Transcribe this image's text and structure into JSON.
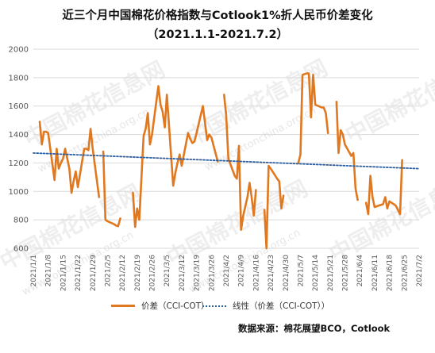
{
  "title": {
    "line1": "近三个月中国棉花价格指数与Cotlook1%折人民币价差变化",
    "line2": "（2021.1.1-2021.7.2）"
  },
  "watermark": {
    "text": "中国棉花信息网",
    "url": "www.cottonchina.org.cn"
  },
  "legend": {
    "series_label": "价差（CCI-COT）",
    "trend_label": "线性（价差（CCI-COT））"
  },
  "source": "数据来源：棉花展望BCO，Cotlook",
  "colors": {
    "series": "#E07820",
    "trend": "#2E5E9E",
    "gridline": "#D9D9D9"
  },
  "chart_data": {
    "type": "line",
    "title": "近三个月中国棉花价格指数与Cotlook1%折人民币价差变化（2021.1.1-2021.7.2）",
    "xlabel": "",
    "ylabel": "",
    "ylim": [
      600,
      2000
    ],
    "yticks": [
      600,
      800,
      1000,
      1200,
      1400,
      1600,
      1800,
      2000
    ],
    "xticks": [
      "2021/1/1",
      "2021/1/8",
      "2021/1/15",
      "2021/1/22",
      "2021/1/29",
      "2021/2/5",
      "2021/2/12",
      "2021/2/19",
      "2021/2/26",
      "2021/3/5",
      "2021/3/12",
      "2021/3/19",
      "2021/3/26",
      "2021/4/2",
      "2021/4/9",
      "2021/4/16",
      "2021/4/23",
      "2021/4/30",
      "2021/5/7",
      "2021/5/14",
      "2021/5/21",
      "2021/5/28",
      "2021/6/4",
      "2021/6/11",
      "2021/6/18",
      "2021/6/25",
      "2021/7/2"
    ],
    "grid": true,
    "legend_position": "bottom",
    "series": [
      {
        "name": "价差（CCI-COT）",
        "style": "solid",
        "points": [
          [
            "2021/1/4",
            1490
          ],
          [
            "2021/1/5",
            1330
          ],
          [
            "2021/1/6",
            1420
          ],
          [
            "2021/1/7",
            1420
          ],
          [
            "2021/1/8",
            1410
          ],
          [
            "2021/1/11",
            1080
          ],
          [
            "2021/1/12",
            1300
          ],
          [
            "2021/1/13",
            1160
          ],
          [
            "2021/1/14",
            1200
          ],
          [
            "2021/1/15",
            1230
          ],
          [
            "2021/1/16",
            1300
          ],
          [
            "2021/1/18",
            1160
          ],
          [
            "2021/1/19",
            990
          ],
          [
            "2021/1/20",
            1070
          ],
          [
            "2021/1/21",
            1140
          ],
          [
            "2021/1/22",
            1030
          ],
          [
            "2021/1/25",
            1300
          ],
          [
            "2021/1/26",
            1300
          ],
          [
            "2021/1/27",
            1290
          ],
          [
            "2021/1/28",
            1440
          ],
          [
            "2021/1/29",
            1300
          ],
          [
            "2021/2/1",
            960
          ],
          [
            "2021/2/2",
            null
          ],
          [
            "2021/2/3",
            1280
          ],
          [
            "2021/2/4",
            800
          ],
          [
            "2021/2/5",
            790
          ],
          [
            "2021/2/8",
            770
          ],
          [
            "2021/2/9",
            760
          ],
          [
            "2021/2/10",
            755
          ],
          [
            "2021/2/11",
            810
          ],
          [
            "2021/2/12",
            null
          ],
          [
            "2021/2/17",
            990
          ],
          [
            "2021/2/18",
            750
          ],
          [
            "2021/2/19",
            880
          ],
          [
            "2021/2/20",
            800
          ],
          [
            "2021/2/22",
            1390
          ],
          [
            "2021/2/23",
            1440
          ],
          [
            "2021/2/24",
            1550
          ],
          [
            "2021/2/25",
            1330
          ],
          [
            "2021/2/26",
            1400
          ],
          [
            "2021/3/1",
            1740
          ],
          [
            "2021/3/2",
            1610
          ],
          [
            "2021/3/3",
            1560
          ],
          [
            "2021/3/4",
            1450
          ],
          [
            "2021/3/5",
            1680
          ],
          [
            "2021/3/8",
            1040
          ],
          [
            "2021/3/9",
            1130
          ],
          [
            "2021/3/10",
            1200
          ],
          [
            "2021/3/11",
            1260
          ],
          [
            "2021/3/12",
            1180
          ],
          [
            "2021/3/15",
            1410
          ],
          [
            "2021/3/16",
            1370
          ],
          [
            "2021/3/17",
            1340
          ],
          [
            "2021/3/18",
            1350
          ],
          [
            "2021/3/19",
            1410
          ],
          [
            "2021/3/22",
            1600
          ],
          [
            "2021/3/23",
            1480
          ],
          [
            "2021/3/24",
            1360
          ],
          [
            "2021/3/25",
            1400
          ],
          [
            "2021/3/26",
            1380
          ],
          [
            "2021/3/29",
            1210
          ],
          [
            "2021/3/30",
            null
          ],
          [
            "2021/4/1",
            1680
          ],
          [
            "2021/4/2",
            1530
          ],
          [
            "2021/4/3",
            1230
          ],
          [
            "2021/4/6",
            1110
          ],
          [
            "2021/4/7",
            1090
          ],
          [
            "2021/4/8",
            1320
          ],
          [
            "2021/4/9",
            730
          ],
          [
            "2021/4/10",
            830
          ],
          [
            "2021/4/12",
            960
          ],
          [
            "2021/4/13",
            1060
          ],
          [
            "2021/4/14",
            960
          ],
          [
            "2021/4/15",
            830
          ],
          [
            "2021/4/16",
            1010
          ],
          [
            "2021/4/19",
            null
          ],
          [
            "2021/4/20",
            870
          ],
          [
            "2021/4/21",
            600
          ],
          [
            "2021/4/22",
            1180
          ],
          [
            "2021/4/23",
            1160
          ],
          [
            "2021/4/26",
            1090
          ],
          [
            "2021/4/27",
            1070
          ],
          [
            "2021/4/28",
            880
          ],
          [
            "2021/4/29",
            970
          ],
          [
            "2021/4/30",
            null
          ],
          [
            "2021/5/6",
            1200
          ],
          [
            "2021/5/7",
            1260
          ],
          [
            "2021/5/8",
            1820
          ],
          [
            "2021/5/10",
            1830
          ],
          [
            "2021/5/11",
            1830
          ],
          [
            "2021/5/12",
            1520
          ],
          [
            "2021/5/13",
            1820
          ],
          [
            "2021/5/14",
            1610
          ],
          [
            "2021/5/17",
            1590
          ],
          [
            "2021/5/18",
            1590
          ],
          [
            "2021/5/19",
            1550
          ],
          [
            "2021/5/20",
            1410
          ],
          [
            "2021/5/21",
            null
          ],
          [
            "2021/5/24",
            1630
          ],
          [
            "2021/5/25",
            1270
          ],
          [
            "2021/5/26",
            1430
          ],
          [
            "2021/5/27",
            1400
          ],
          [
            "2021/5/28",
            1330
          ],
          [
            "2021/5/31",
            1250
          ],
          [
            "2021/6/1",
            1270
          ],
          [
            "2021/6/2",
            1020
          ],
          [
            "2021/6/3",
            940
          ],
          [
            "2021/6/4",
            null
          ],
          [
            "2021/6/7",
            920
          ],
          [
            "2021/6/8",
            840
          ],
          [
            "2021/6/9",
            1110
          ],
          [
            "2021/6/10",
            960
          ],
          [
            "2021/6/11",
            890
          ],
          [
            "2021/6/15",
            910
          ],
          [
            "2021/6/16",
            960
          ],
          [
            "2021/6/17",
            880
          ],
          [
            "2021/6/18",
            930
          ],
          [
            "2021/6/21",
            900
          ],
          [
            "2021/6/22",
            870
          ],
          [
            "2021/6/23",
            840
          ],
          [
            "2021/6/24",
            1220
          ]
        ]
      },
      {
        "name": "线性（价差（CCI-COT））",
        "style": "dotted",
        "points": [
          [
            "2021/1/1",
            1270
          ],
          [
            "2021/7/2",
            1160
          ]
        ]
      }
    ]
  }
}
